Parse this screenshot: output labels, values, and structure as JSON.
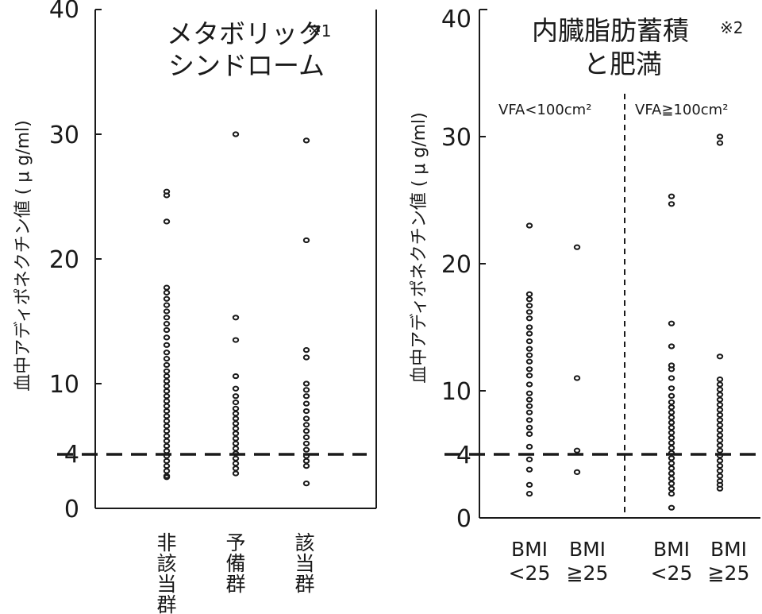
{
  "chart_data": [
    {
      "type": "scatter",
      "title_lines": [
        "メタボリック",
        "シンドローム"
      ],
      "title_note": "※1",
      "ylabel": "血中アディポネクチン値 ( μ g/ml)",
      "ylim": [
        0,
        40
      ],
      "yticks": [
        "0",
        "4",
        "10",
        "20",
        "30",
        "40"
      ],
      "reference_line": 4,
      "groups": [
        {
          "label": "非該当群",
          "values": [
            25.4,
            25.1,
            23.0,
            17.7,
            17.3,
            16.8,
            16.3,
            15.8,
            15.3,
            14.8,
            14.3,
            13.7,
            13.1,
            12.5,
            12.0,
            11.5,
            11.0,
            10.6,
            10.2,
            9.8,
            9.4,
            9.0,
            8.6,
            8.2,
            7.8,
            7.4,
            7.0,
            6.6,
            6.2,
            5.8,
            5.4,
            5.0,
            4.6,
            4.2,
            3.8,
            3.4,
            3.0,
            2.6,
            2.5
          ]
        },
        {
          "label": "予備群",
          "values": [
            30.0,
            15.3,
            13.5,
            10.6,
            9.6,
            9.0,
            8.5,
            8.0,
            7.6,
            7.2,
            6.8,
            6.4,
            6.0,
            5.6,
            5.2,
            4.8,
            4.4,
            4.0,
            3.6,
            3.2,
            2.8
          ]
        },
        {
          "label": "該当群",
          "values": [
            29.5,
            21.5,
            12.7,
            12.1,
            10.0,
            9.5,
            9.0,
            8.4,
            7.8,
            7.2,
            6.7,
            6.2,
            5.7,
            5.2,
            4.7,
            4.2,
            3.8,
            3.4,
            2.0
          ]
        }
      ]
    },
    {
      "type": "scatter",
      "title_lines": [
        "内臓脂肪蓄積",
        "と肥満"
      ],
      "title_note": "※2",
      "ylabel": "血中アディポネクチン値 ( μ g/ml)",
      "ylim": [
        0,
        40
      ],
      "yticks": [
        "0",
        "4",
        "10",
        "20",
        "30",
        "40"
      ],
      "reference_line": 4,
      "region_labels": [
        "VFA<100cm²",
        "VFA≧100cm²"
      ],
      "groups": [
        {
          "label": [
            "BMI",
            "<25"
          ],
          "values": [
            23.0,
            17.6,
            17.2,
            16.7,
            16.2,
            15.7,
            15.0,
            14.5,
            13.9,
            13.3,
            12.8,
            12.3,
            11.7,
            11.2,
            10.5,
            9.8,
            9.3,
            8.8,
            8.3,
            7.7,
            7.1,
            6.6,
            5.6,
            4.6,
            3.8,
            2.6,
            1.9
          ]
        },
        {
          "label": [
            "BMI",
            "≧25"
          ],
          "values": [
            21.3,
            11.0,
            5.3,
            3.6
          ]
        },
        {
          "label": [
            "BMI",
            "<25"
          ],
          "values": [
            25.3,
            24.7,
            15.3,
            13.5,
            12.0,
            11.7,
            11.0,
            10.2,
            9.6,
            9.1,
            8.7,
            8.3,
            7.9,
            7.5,
            7.1,
            6.7,
            6.3,
            5.9,
            5.5,
            5.1,
            4.7,
            4.3,
            3.9,
            3.5,
            3.1,
            2.7,
            2.3,
            1.9,
            0.8
          ]
        },
        {
          "label": [
            "BMI",
            "≧25"
          ],
          "values": [
            30.0,
            29.5,
            12.7,
            10.9,
            10.5,
            10.1,
            9.7,
            9.3,
            8.9,
            8.5,
            8.1,
            7.7,
            7.3,
            6.9,
            6.5,
            6.1,
            5.7,
            5.3,
            4.9,
            4.5,
            4.1,
            3.7,
            3.3,
            2.9,
            2.6,
            2.3
          ]
        }
      ]
    }
  ]
}
